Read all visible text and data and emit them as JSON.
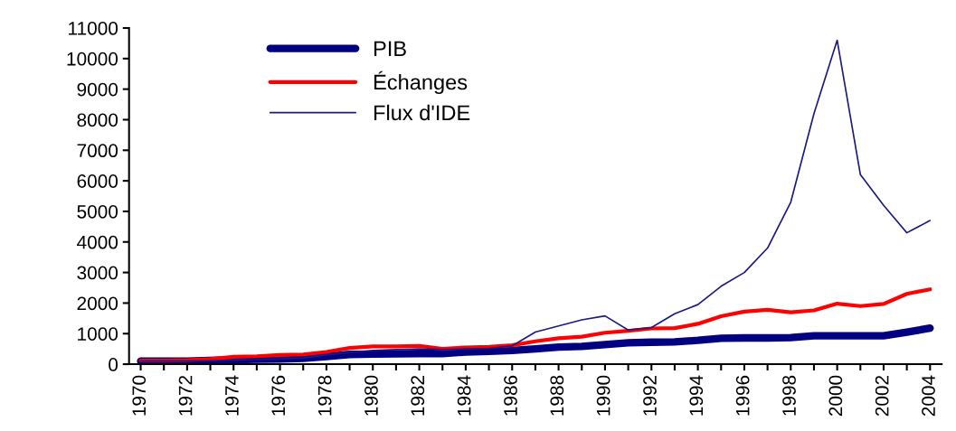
{
  "chart_data": {
    "type": "line",
    "x": [
      1970,
      1971,
      1972,
      1973,
      1974,
      1975,
      1976,
      1977,
      1978,
      1979,
      1980,
      1981,
      1982,
      1983,
      1984,
      1985,
      1986,
      1987,
      1988,
      1989,
      1990,
      1991,
      1992,
      1993,
      1994,
      1995,
      1996,
      1997,
      1998,
      1999,
      2000,
      2001,
      2002,
      2003,
      2004
    ],
    "series": [
      {
        "name": "PIB",
        "color": "#000080",
        "values": [
          100,
          100,
          100,
          120,
          150,
          160,
          170,
          190,
          250,
          320,
          330,
          340,
          350,
          350,
          400,
          420,
          450,
          500,
          560,
          580,
          640,
          700,
          720,
          730,
          780,
          850,
          860,
          860,
          870,
          930,
          930,
          930,
          930,
          1050,
          1180
        ]
      },
      {
        "name": "Échanges",
        "color": "#ff0000",
        "values": [
          120,
          120,
          130,
          170,
          240,
          260,
          300,
          320,
          400,
          530,
          580,
          580,
          600,
          500,
          550,
          570,
          620,
          750,
          850,
          900,
          1030,
          1090,
          1170,
          1180,
          1320,
          1570,
          1720,
          1780,
          1700,
          1760,
          1980,
          1900,
          1970,
          2300,
          2450
        ]
      },
      {
        "name": "Flux d'IDE",
        "color": "#1a1a80",
        "values": [
          100,
          100,
          100,
          110,
          130,
          150,
          170,
          200,
          300,
          380,
          450,
          480,
          500,
          480,
          500,
          520,
          600,
          1050,
          1250,
          1450,
          1580,
          1120,
          1200,
          1650,
          1950,
          2550,
          3000,
          3800,
          5300,
          8200,
          10600,
          6200,
          5200,
          4300,
          4700
        ]
      }
    ],
    "xlim": [
      1969.5,
      2004.5
    ],
    "xticks": [
      1970,
      {
        "value": 1971,
        "label": null
      },
      1972,
      {
        "value": 1973,
        "label": null
      },
      1974,
      {
        "value": 1975,
        "label": null
      },
      1976,
      {
        "value": 1977,
        "label": null
      },
      1978,
      {
        "value": 1979,
        "label": null
      },
      1980,
      {
        "value": 1981,
        "label": null
      },
      1982,
      {
        "value": 1983,
        "label": null
      },
      1984,
      {
        "value": 1985,
        "label": null
      },
      1986,
      {
        "value": 1987,
        "label": null
      },
      1988,
      {
        "value": 1989,
        "label": null
      },
      1990,
      {
        "value": 1991,
        "label": null
      },
      1992,
      {
        "value": 1993,
        "label": null
      },
      1994,
      {
        "value": 1995,
        "label": null
      },
      1996,
      {
        "value": 1997,
        "label": null
      },
      1998,
      {
        "value": 1999,
        "label": null
      },
      2000,
      {
        "value": 2001,
        "label": null
      },
      2002,
      {
        "value": 2003,
        "label": null
      },
      2004
    ],
    "ylim": [
      0,
      11000
    ],
    "yticks": [
      0,
      1000,
      2000,
      3000,
      4000,
      5000,
      6000,
      7000,
      8000,
      9000,
      10000,
      11000
    ],
    "grid": false,
    "legend": "top left",
    "line_style": "solid"
  }
}
